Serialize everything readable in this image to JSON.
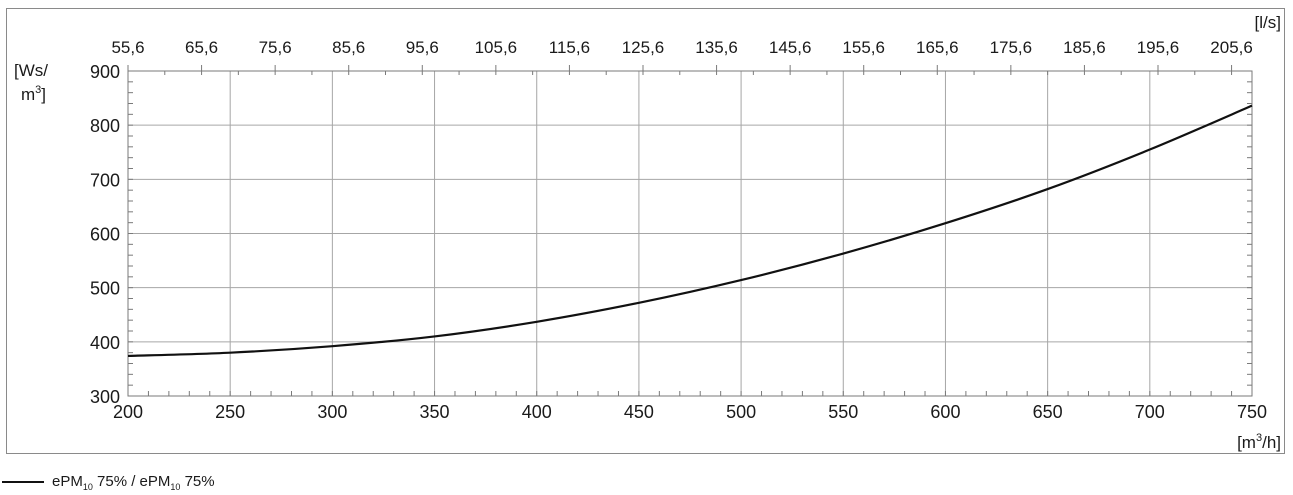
{
  "chart_data": {
    "type": "line",
    "x_axis": {
      "label_line1": "[m",
      "label_sup": "3",
      "label_line2": "/h]",
      "min": 200,
      "max": 750,
      "ticks": [
        200,
        250,
        300,
        350,
        400,
        450,
        500,
        550,
        600,
        650,
        700,
        750
      ]
    },
    "x2_axis": {
      "label": "[l/s]",
      "ticks": [
        "55,6",
        "65,6",
        "75,6",
        "85,6",
        "95,6",
        "105,6",
        "115,6",
        "125,6",
        "135,6",
        "145,6",
        "155,6",
        "165,6",
        "175,6",
        "185,6",
        "195,6",
        "205,6"
      ]
    },
    "y_axis": {
      "label_line1": "[Ws/",
      "label_line2a": "m",
      "label_sup": "3",
      "label_line2b": "]",
      "min": 300,
      "max": 900,
      "ticks": [
        300,
        400,
        500,
        600,
        700,
        800,
        900
      ]
    },
    "grid": true,
    "series": [
      {
        "name": "ePM10 75% / ePM10 75%",
        "color": "#111111",
        "x": [
          200,
          250,
          300,
          350,
          400,
          450,
          500,
          550,
          600,
          650,
          700,
          750
        ],
        "y": [
          374,
          380,
          392,
          410,
          437,
          472,
          514,
          563,
          619,
          682,
          755,
          836
        ]
      }
    ]
  },
  "legend": {
    "prefix1": "ePM",
    "sub1": "10",
    "suffix1": " 75% / ePM",
    "sub2": "10",
    "suffix2": " 75%"
  }
}
